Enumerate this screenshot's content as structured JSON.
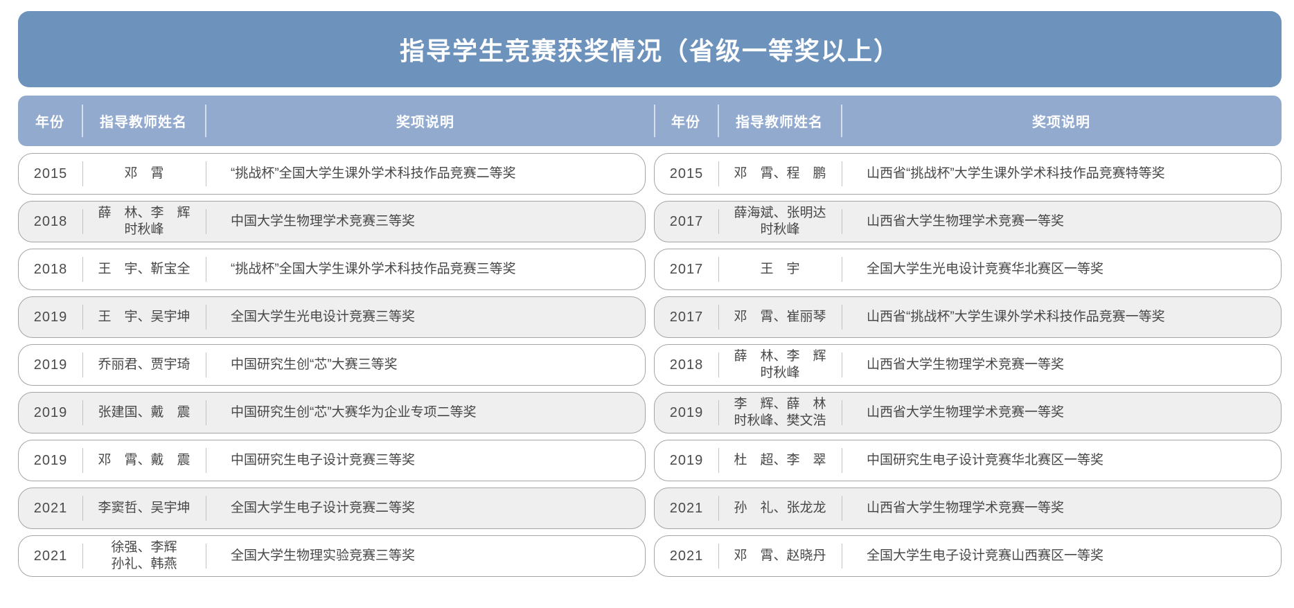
{
  "title": "指导学生竞赛获奖情况（省级一等奖以上）",
  "columns": [
    "年份",
    "指导教师姓名",
    "奖项说明"
  ],
  "colors": {
    "title_bar_bg": "#6D92BC",
    "header_bar_bg": "#92AACE",
    "row_alt_bg": "#EFEFEF",
    "row_border": "#A4A4A4",
    "cell_sep": "#C2C2C2",
    "row_text": "#474747"
  },
  "tables": {
    "left": {
      "rows": [
        {
          "year": "2015",
          "teachers": "邓　霄",
          "award": "“挑战杯”全国大学生课外学术科技作品竞赛二等奖"
        },
        {
          "year": "2018",
          "teachers": "薛　林、李　辉\n时秋峰",
          "award": "中国大学生物理学术竞赛三等奖"
        },
        {
          "year": "2018",
          "teachers": "王　宇、靳宝全",
          "award": "“挑战杯”全国大学生课外学术科技作品竞赛三等奖"
        },
        {
          "year": "2019",
          "teachers": "王　宇、吴宇坤",
          "award": "全国大学生光电设计竞赛三等奖"
        },
        {
          "year": "2019",
          "teachers": "乔丽君、贾宇琦",
          "award": "中国研究生创“芯”大赛三等奖"
        },
        {
          "year": "2019",
          "teachers": "张建国、戴　震",
          "award": "中国研究生创“芯”大赛华为企业专项二等奖"
        },
        {
          "year": "2019",
          "teachers": "邓　霄、戴　震",
          "award": "中国研究生电子设计竞赛三等奖"
        },
        {
          "year": "2021",
          "teachers": "李窦哲、吴宇坤",
          "award": "全国大学生电子设计竞赛二等奖"
        },
        {
          "year": "2021",
          "teachers": "徐强、李辉\n孙礼、韩燕",
          "award": "全国大学生物理实验竞赛三等奖"
        }
      ]
    },
    "right": {
      "rows": [
        {
          "year": "2015",
          "teachers": "邓　霄、程　鹏",
          "award": "山西省“挑战杯”大学生课外学术科技作品竞赛特等奖"
        },
        {
          "year": "2017",
          "teachers": "薛海斌、张明达\n时秋峰",
          "award": "山西省大学生物理学术竞赛一等奖"
        },
        {
          "year": "2017",
          "teachers": "王　宇",
          "award": "全国大学生光电设计竞赛华北赛区一等奖"
        },
        {
          "year": "2017",
          "teachers": "邓　霄、崔丽琴",
          "award": "山西省“挑战杯”大学生课外学术科技作品竞赛一等奖"
        },
        {
          "year": "2018",
          "teachers": "薛　林、李　辉\n时秋峰",
          "award": "山西省大学生物理学术竞赛一等奖"
        },
        {
          "year": "2019",
          "teachers": "李　辉、薛　林\n时秋峰、樊文浩",
          "award": "山西省大学生物理学术竞赛一等奖"
        },
        {
          "year": "2019",
          "teachers": "杜　超、李　翠",
          "award": "中国研究生电子设计竞赛华北赛区一等奖"
        },
        {
          "year": "2021",
          "teachers": "孙　礼、张龙龙",
          "award": "山西省大学生物理学术竞赛一等奖"
        },
        {
          "year": "2021",
          "teachers": "邓　霄、赵晓丹",
          "award": "全国大学生电子设计竞赛山西赛区一等奖"
        }
      ]
    }
  }
}
